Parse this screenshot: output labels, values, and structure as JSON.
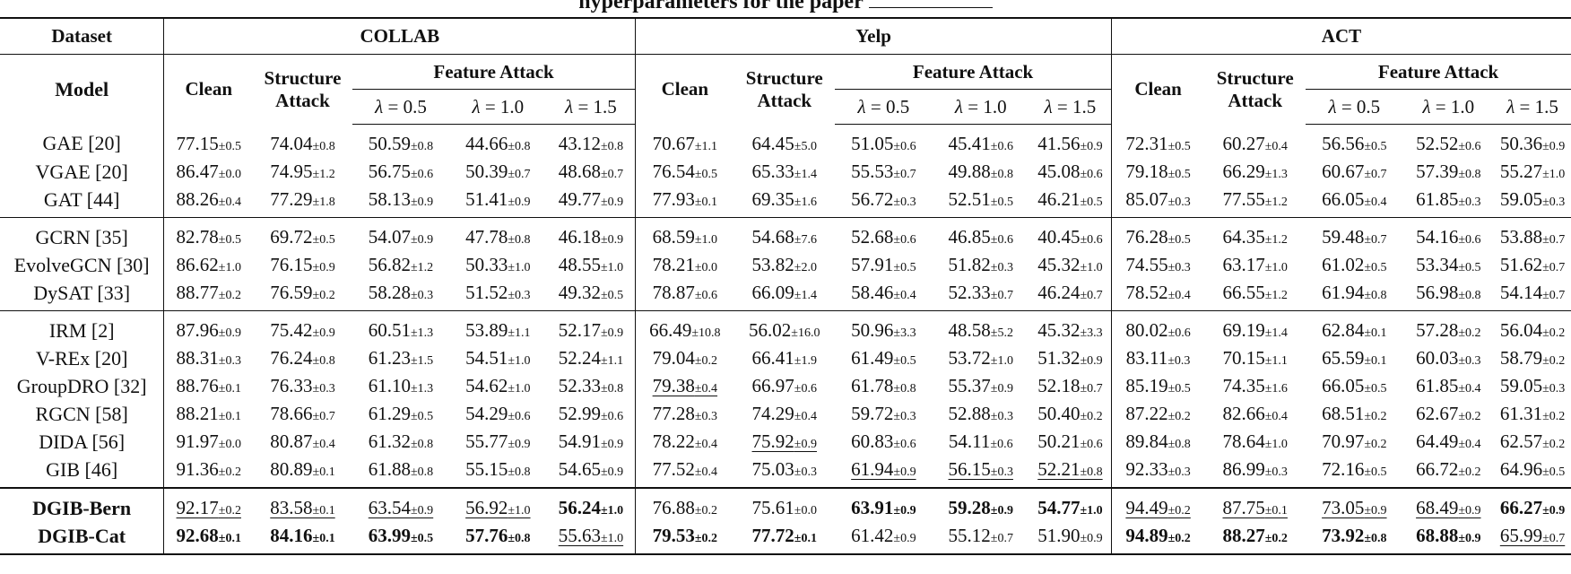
{
  "caption": {
    "text": "hyperparameters for the paper"
  },
  "header": {
    "dataset_label": "Dataset",
    "model_label": "Model",
    "datasets": [
      "COLLAB",
      "Yelp",
      "ACT"
    ],
    "clean_label": "Clean",
    "structure_label_1": "Structure",
    "structure_label_2": "Attack",
    "feature_label": "Feature Attack",
    "lambda_symbol": "λ",
    "lambdas": [
      "= 0.5",
      "= 1.0",
      "= 1.5"
    ]
  },
  "groups": [
    [
      {
        "model": "GAE [20]",
        "cells": [
          {
            "v": "77.15",
            "s": "±0.5"
          },
          {
            "v": "74.04",
            "s": "±0.8"
          },
          {
            "v": "50.59",
            "s": "±0.8"
          },
          {
            "v": "44.66",
            "s": "±0.8"
          },
          {
            "v": "43.12",
            "s": "±0.8"
          },
          {
            "v": "70.67",
            "s": "±1.1"
          },
          {
            "v": "64.45",
            "s": "±5.0"
          },
          {
            "v": "51.05",
            "s": "±0.6"
          },
          {
            "v": "45.41",
            "s": "±0.6"
          },
          {
            "v": "41.56",
            "s": "±0.9"
          },
          {
            "v": "72.31",
            "s": "±0.5"
          },
          {
            "v": "60.27",
            "s": "±0.4"
          },
          {
            "v": "56.56",
            "s": "±0.5"
          },
          {
            "v": "52.52",
            "s": "±0.6"
          },
          {
            "v": "50.36",
            "s": "±0.9"
          }
        ]
      },
      {
        "model": "VGAE [20]",
        "cells": [
          {
            "v": "86.47",
            "s": "±0.0"
          },
          {
            "v": "74.95",
            "s": "±1.2"
          },
          {
            "v": "56.75",
            "s": "±0.6"
          },
          {
            "v": "50.39",
            "s": "±0.7"
          },
          {
            "v": "48.68",
            "s": "±0.7"
          },
          {
            "v": "76.54",
            "s": "±0.5"
          },
          {
            "v": "65.33",
            "s": "±1.4"
          },
          {
            "v": "55.53",
            "s": "±0.7"
          },
          {
            "v": "49.88",
            "s": "±0.8"
          },
          {
            "v": "45.08",
            "s": "±0.6"
          },
          {
            "v": "79.18",
            "s": "±0.5"
          },
          {
            "v": "66.29",
            "s": "±1.3"
          },
          {
            "v": "60.67",
            "s": "±0.7"
          },
          {
            "v": "57.39",
            "s": "±0.8"
          },
          {
            "v": "55.27",
            "s": "±1.0"
          }
        ]
      },
      {
        "model": "GAT [44]",
        "cells": [
          {
            "v": "88.26",
            "s": "±0.4"
          },
          {
            "v": "77.29",
            "s": "±1.8"
          },
          {
            "v": "58.13",
            "s": "±0.9"
          },
          {
            "v": "51.41",
            "s": "±0.9"
          },
          {
            "v": "49.77",
            "s": "±0.9"
          },
          {
            "v": "77.93",
            "s": "±0.1"
          },
          {
            "v": "69.35",
            "s": "±1.6"
          },
          {
            "v": "56.72",
            "s": "±0.3"
          },
          {
            "v": "52.51",
            "s": "±0.5"
          },
          {
            "v": "46.21",
            "s": "±0.5"
          },
          {
            "v": "85.07",
            "s": "±0.3"
          },
          {
            "v": "77.55",
            "s": "±1.2"
          },
          {
            "v": "66.05",
            "s": "±0.4"
          },
          {
            "v": "61.85",
            "s": "±0.3"
          },
          {
            "v": "59.05",
            "s": "±0.3"
          }
        ]
      }
    ],
    [
      {
        "model": "GCRN [35]",
        "cells": [
          {
            "v": "82.78",
            "s": "±0.5"
          },
          {
            "v": "69.72",
            "s": "±0.5"
          },
          {
            "v": "54.07",
            "s": "±0.9"
          },
          {
            "v": "47.78",
            "s": "±0.8"
          },
          {
            "v": "46.18",
            "s": "±0.9"
          },
          {
            "v": "68.59",
            "s": "±1.0"
          },
          {
            "v": "54.68",
            "s": "±7.6"
          },
          {
            "v": "52.68",
            "s": "±0.6"
          },
          {
            "v": "46.85",
            "s": "±0.6"
          },
          {
            "v": "40.45",
            "s": "±0.6"
          },
          {
            "v": "76.28",
            "s": "±0.5"
          },
          {
            "v": "64.35",
            "s": "±1.2"
          },
          {
            "v": "59.48",
            "s": "±0.7"
          },
          {
            "v": "54.16",
            "s": "±0.6"
          },
          {
            "v": "53.88",
            "s": "±0.7"
          }
        ]
      },
      {
        "model": "EvolveGCN [30]",
        "cells": [
          {
            "v": "86.62",
            "s": "±1.0"
          },
          {
            "v": "76.15",
            "s": "±0.9"
          },
          {
            "v": "56.82",
            "s": "±1.2"
          },
          {
            "v": "50.33",
            "s": "±1.0"
          },
          {
            "v": "48.55",
            "s": "±1.0"
          },
          {
            "v": "78.21",
            "s": "±0.0"
          },
          {
            "v": "53.82",
            "s": "±2.0"
          },
          {
            "v": "57.91",
            "s": "±0.5"
          },
          {
            "v": "51.82",
            "s": "±0.3"
          },
          {
            "v": "45.32",
            "s": "±1.0"
          },
          {
            "v": "74.55",
            "s": "±0.3"
          },
          {
            "v": "63.17",
            "s": "±1.0"
          },
          {
            "v": "61.02",
            "s": "±0.5"
          },
          {
            "v": "53.34",
            "s": "±0.5"
          },
          {
            "v": "51.62",
            "s": "±0.7"
          }
        ]
      },
      {
        "model": "DySAT [33]",
        "cells": [
          {
            "v": "88.77",
            "s": "±0.2"
          },
          {
            "v": "76.59",
            "s": "±0.2"
          },
          {
            "v": "58.28",
            "s": "±0.3"
          },
          {
            "v": "51.52",
            "s": "±0.3"
          },
          {
            "v": "49.32",
            "s": "±0.5"
          },
          {
            "v": "78.87",
            "s": "±0.6"
          },
          {
            "v": "66.09",
            "s": "±1.4"
          },
          {
            "v": "58.46",
            "s": "±0.4"
          },
          {
            "v": "52.33",
            "s": "±0.7"
          },
          {
            "v": "46.24",
            "s": "±0.7"
          },
          {
            "v": "78.52",
            "s": "±0.4"
          },
          {
            "v": "66.55",
            "s": "±1.2"
          },
          {
            "v": "61.94",
            "s": "±0.8"
          },
          {
            "v": "56.98",
            "s": "±0.8"
          },
          {
            "v": "54.14",
            "s": "±0.7"
          }
        ]
      }
    ],
    [
      {
        "model": "IRM [2]",
        "cells": [
          {
            "v": "87.96",
            "s": "±0.9"
          },
          {
            "v": "75.42",
            "s": "±0.9"
          },
          {
            "v": "60.51",
            "s": "±1.3"
          },
          {
            "v": "53.89",
            "s": "±1.1"
          },
          {
            "v": "52.17",
            "s": "±0.9"
          },
          {
            "v": "66.49",
            "s": "±10.8"
          },
          {
            "v": "56.02",
            "s": "±16.0"
          },
          {
            "v": "50.96",
            "s": "±3.3"
          },
          {
            "v": "48.58",
            "s": "±5.2"
          },
          {
            "v": "45.32",
            "s": "±3.3"
          },
          {
            "v": "80.02",
            "s": "±0.6"
          },
          {
            "v": "69.19",
            "s": "±1.4"
          },
          {
            "v": "62.84",
            "s": "±0.1"
          },
          {
            "v": "57.28",
            "s": "±0.2"
          },
          {
            "v": "56.04",
            "s": "±0.2"
          }
        ]
      },
      {
        "model": "V-REx [20]",
        "cells": [
          {
            "v": "88.31",
            "s": "±0.3"
          },
          {
            "v": "76.24",
            "s": "±0.8"
          },
          {
            "v": "61.23",
            "s": "±1.5"
          },
          {
            "v": "54.51",
            "s": "±1.0"
          },
          {
            "v": "52.24",
            "s": "±1.1"
          },
          {
            "v": "79.04",
            "s": "±0.2"
          },
          {
            "v": "66.41",
            "s": "±1.9"
          },
          {
            "v": "61.49",
            "s": "±0.5"
          },
          {
            "v": "53.72",
            "s": "±1.0"
          },
          {
            "v": "51.32",
            "s": "±0.9"
          },
          {
            "v": "83.11",
            "s": "±0.3"
          },
          {
            "v": "70.15",
            "s": "±1.1"
          },
          {
            "v": "65.59",
            "s": "±0.1"
          },
          {
            "v": "60.03",
            "s": "±0.3"
          },
          {
            "v": "58.79",
            "s": "±0.2"
          }
        ]
      },
      {
        "model": "GroupDRO [32]",
        "cells": [
          {
            "v": "88.76",
            "s": "±0.1"
          },
          {
            "v": "76.33",
            "s": "±0.3"
          },
          {
            "v": "61.10",
            "s": "±1.3"
          },
          {
            "v": "54.62",
            "s": "±1.0"
          },
          {
            "v": "52.33",
            "s": "±0.8"
          },
          {
            "v": "79.38",
            "s": "±0.4",
            "u": true
          },
          {
            "v": "66.97",
            "s": "±0.6"
          },
          {
            "v": "61.78",
            "s": "±0.8"
          },
          {
            "v": "55.37",
            "s": "±0.9"
          },
          {
            "v": "52.18",
            "s": "±0.7"
          },
          {
            "v": "85.19",
            "s": "±0.5"
          },
          {
            "v": "74.35",
            "s": "±1.6"
          },
          {
            "v": "66.05",
            "s": "±0.5"
          },
          {
            "v": "61.85",
            "s": "±0.4"
          },
          {
            "v": "59.05",
            "s": "±0.3"
          }
        ]
      },
      {
        "model": "RGCN [58]",
        "cells": [
          {
            "v": "88.21",
            "s": "±0.1"
          },
          {
            "v": "78.66",
            "s": "±0.7"
          },
          {
            "v": "61.29",
            "s": "±0.5"
          },
          {
            "v": "54.29",
            "s": "±0.6"
          },
          {
            "v": "52.99",
            "s": "±0.6"
          },
          {
            "v": "77.28",
            "s": "±0.3"
          },
          {
            "v": "74.29",
            "s": "±0.4"
          },
          {
            "v": "59.72",
            "s": "±0.3"
          },
          {
            "v": "52.88",
            "s": "±0.3"
          },
          {
            "v": "50.40",
            "s": "±0.2"
          },
          {
            "v": "87.22",
            "s": "±0.2"
          },
          {
            "v": "82.66",
            "s": "±0.4"
          },
          {
            "v": "68.51",
            "s": "±0.2"
          },
          {
            "v": "62.67",
            "s": "±0.2"
          },
          {
            "v": "61.31",
            "s": "±0.2"
          }
        ]
      },
      {
        "model": "DIDA [56]",
        "cells": [
          {
            "v": "91.97",
            "s": "±0.0"
          },
          {
            "v": "80.87",
            "s": "±0.4"
          },
          {
            "v": "61.32",
            "s": "±0.8"
          },
          {
            "v": "55.77",
            "s": "±0.9"
          },
          {
            "v": "54.91",
            "s": "±0.9"
          },
          {
            "v": "78.22",
            "s": "±0.4"
          },
          {
            "v": "75.92",
            "s": "±0.9",
            "u": true
          },
          {
            "v": "60.83",
            "s": "±0.6"
          },
          {
            "v": "54.11",
            "s": "±0.6"
          },
          {
            "v": "50.21",
            "s": "±0.6"
          },
          {
            "v": "89.84",
            "s": "±0.8"
          },
          {
            "v": "78.64",
            "s": "±1.0"
          },
          {
            "v": "70.97",
            "s": "±0.2"
          },
          {
            "v": "64.49",
            "s": "±0.4"
          },
          {
            "v": "62.57",
            "s": "±0.2"
          }
        ]
      },
      {
        "model": "GIB [46]",
        "cells": [
          {
            "v": "91.36",
            "s": "±0.2"
          },
          {
            "v": "80.89",
            "s": "±0.1"
          },
          {
            "v": "61.88",
            "s": "±0.8"
          },
          {
            "v": "55.15",
            "s": "±0.8"
          },
          {
            "v": "54.65",
            "s": "±0.9"
          },
          {
            "v": "77.52",
            "s": "±0.4"
          },
          {
            "v": "75.03",
            "s": "±0.3"
          },
          {
            "v": "61.94",
            "s": "±0.9",
            "u": true
          },
          {
            "v": "56.15",
            "s": "±0.3",
            "u": true
          },
          {
            "v": "52.21",
            "s": "±0.8",
            "u": true
          },
          {
            "v": "92.33",
            "s": "±0.3"
          },
          {
            "v": "86.99",
            "s": "±0.3"
          },
          {
            "v": "72.16",
            "s": "±0.5"
          },
          {
            "v": "66.72",
            "s": "±0.2"
          },
          {
            "v": "64.96",
            "s": "±0.5"
          }
        ]
      }
    ],
    [
      {
        "model": "DGIB-Bern",
        "bold": true,
        "cells": [
          {
            "v": "92.17",
            "s": "±0.2",
            "u": true
          },
          {
            "v": "83.58",
            "s": "±0.1",
            "u": true
          },
          {
            "v": "63.54",
            "s": "±0.9",
            "u": true
          },
          {
            "v": "56.92",
            "s": "±1.0",
            "u": true
          },
          {
            "v": "56.24",
            "s": "±1.0",
            "b": true
          },
          {
            "v": "76.88",
            "s": "±0.2"
          },
          {
            "v": "75.61",
            "s": "±0.0"
          },
          {
            "v": "63.91",
            "s": "±0.9",
            "b": true
          },
          {
            "v": "59.28",
            "s": "±0.9",
            "b": true
          },
          {
            "v": "54.77",
            "s": "±1.0",
            "b": true
          },
          {
            "v": "94.49",
            "s": "±0.2",
            "u": true
          },
          {
            "v": "87.75",
            "s": "±0.1",
            "u": true
          },
          {
            "v": "73.05",
            "s": "±0.9",
            "u": true
          },
          {
            "v": "68.49",
            "s": "±0.9",
            "u": true
          },
          {
            "v": "66.27",
            "s": "±0.9",
            "b": true
          }
        ]
      },
      {
        "model": "DGIB-Cat",
        "bold": true,
        "cells": [
          {
            "v": "92.68",
            "s": "±0.1",
            "b": true
          },
          {
            "v": "84.16",
            "s": "±0.1",
            "b": true
          },
          {
            "v": "63.99",
            "s": "±0.5",
            "b": true
          },
          {
            "v": "57.76",
            "s": "±0.8",
            "b": true
          },
          {
            "v": "55.63",
            "s": "±1.0",
            "u": true
          },
          {
            "v": "79.53",
            "s": "±0.2",
            "b": true
          },
          {
            "v": "77.72",
            "s": "±0.1",
            "b": true
          },
          {
            "v": "61.42",
            "s": "±0.9"
          },
          {
            "v": "55.12",
            "s": "±0.7"
          },
          {
            "v": "51.90",
            "s": "±0.9"
          },
          {
            "v": "94.89",
            "s": "±0.2",
            "b": true
          },
          {
            "v": "88.27",
            "s": "±0.2",
            "b": true
          },
          {
            "v": "73.92",
            "s": "±0.8",
            "b": true
          },
          {
            "v": "68.88",
            "s": "±0.9",
            "b": true
          },
          {
            "v": "65.99",
            "s": "±0.7",
            "u": true
          }
        ]
      }
    ]
  ]
}
